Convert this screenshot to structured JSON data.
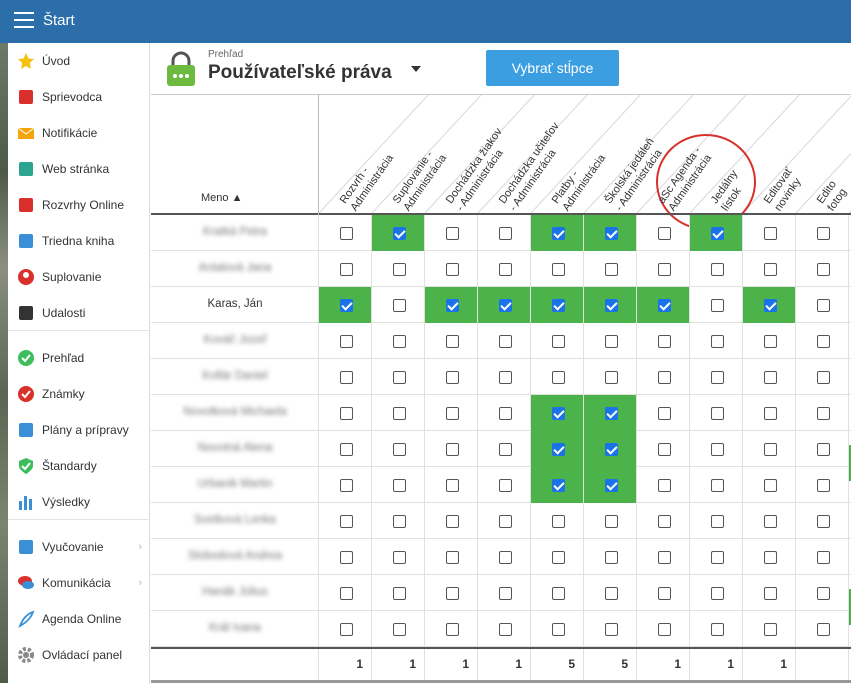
{
  "topbar": {
    "title": "Štart"
  },
  "sidebar": {
    "items": [
      {
        "label": "Úvod",
        "icon": "star-icon"
      },
      {
        "label": "Sprievodca",
        "icon": "magic-wand-icon"
      },
      {
        "label": "Notifikácie",
        "icon": "envelope-icon"
      },
      {
        "label": "Web stránka",
        "icon": "house-icon"
      },
      {
        "label": "Rozvrhy Online",
        "icon": "timetable-icon"
      },
      {
        "label": "Triedna kniha",
        "icon": "book-icon"
      },
      {
        "label": "Suplovanie",
        "icon": "person-icon"
      },
      {
        "label": "Udalosti",
        "icon": "calendar-icon"
      },
      {
        "label": "Prehľad",
        "icon": "check-circle-icon"
      },
      {
        "label": "Známky",
        "icon": "grade-icon"
      },
      {
        "label": "Plány a prípravy",
        "icon": "briefcase-icon"
      },
      {
        "label": "Štandardy",
        "icon": "shield-check-icon"
      },
      {
        "label": "Výsledky",
        "icon": "bar-chart-icon"
      },
      {
        "label": "Vyučovanie",
        "icon": "open-book-icon"
      },
      {
        "label": "Komunikácia",
        "icon": "chat-icon"
      },
      {
        "label": "Agenda Online",
        "icon": "feather-icon"
      },
      {
        "label": "Ovládací panel",
        "icon": "gear-icon"
      }
    ]
  },
  "header": {
    "subtitle": "Prehľad",
    "title": "Používateľské práva",
    "button": "Vybrať stĺpce"
  },
  "table": {
    "name_header": "Meno ▲",
    "columns": [
      [
        "Rozvrh -",
        "Administrácia"
      ],
      [
        "Suplovanie -",
        "Administrácia"
      ],
      [
        "Dochádzka žiakov",
        "- Administrácia"
      ],
      [
        "Dochádzka učiteľov",
        "- Administrácia"
      ],
      [
        "Platby -",
        "Administrácia"
      ],
      [
        "Školská jedáleň",
        "- Administrácia"
      ],
      [
        "aSc Agenda -",
        "Administrácia"
      ],
      [
        "Jedálny",
        "lístok"
      ],
      [
        "Editovať",
        "novinky"
      ],
      [
        "Edito",
        "fotog"
      ]
    ],
    "rows": [
      {
        "name": "Kratká Petra",
        "blurred": true,
        "checks": [
          0,
          1,
          0,
          0,
          1,
          1,
          0,
          1,
          0,
          0
        ]
      },
      {
        "name": "Antalová Jana",
        "blurred": true,
        "checks": [
          0,
          0,
          0,
          0,
          0,
          0,
          0,
          0,
          0,
          0
        ]
      },
      {
        "name": "Karas, Ján",
        "blurred": false,
        "checks": [
          1,
          0,
          1,
          1,
          1,
          1,
          1,
          0,
          1,
          0
        ]
      },
      {
        "name": "Kováč Jozef",
        "blurred": true,
        "checks": [
          0,
          0,
          0,
          0,
          0,
          0,
          0,
          0,
          0,
          0
        ]
      },
      {
        "name": "Kollár Daniel",
        "blurred": true,
        "checks": [
          0,
          0,
          0,
          0,
          0,
          0,
          0,
          0,
          0,
          0
        ]
      },
      {
        "name": "Novotková Michaela",
        "blurred": true,
        "checks": [
          0,
          0,
          0,
          0,
          1,
          1,
          0,
          0,
          0,
          0
        ]
      },
      {
        "name": "Novotná Alena",
        "blurred": true,
        "checks": [
          0,
          0,
          0,
          0,
          1,
          1,
          0,
          0,
          0,
          0
        ]
      },
      {
        "name": "Urbanik Martin",
        "blurred": true,
        "checks": [
          0,
          0,
          0,
          0,
          1,
          1,
          0,
          0,
          0,
          0
        ]
      },
      {
        "name": "Svetková Lenka",
        "blurred": true,
        "checks": [
          0,
          0,
          0,
          0,
          0,
          0,
          0,
          0,
          0,
          0
        ]
      },
      {
        "name": "Slobodová Andrea",
        "blurred": true,
        "checks": [
          0,
          0,
          0,
          0,
          0,
          0,
          0,
          0,
          0,
          0
        ]
      },
      {
        "name": "Hanák Július",
        "blurred": true,
        "checks": [
          0,
          0,
          0,
          0,
          0,
          0,
          0,
          0,
          0,
          0
        ]
      },
      {
        "name": "Král Ivana",
        "blurred": true,
        "checks": [
          0,
          0,
          0,
          0,
          0,
          0,
          0,
          0,
          0,
          0
        ]
      }
    ],
    "totals": [
      "1",
      "1",
      "1",
      "1",
      "5",
      "5",
      "1",
      "1",
      "1",
      ""
    ]
  }
}
